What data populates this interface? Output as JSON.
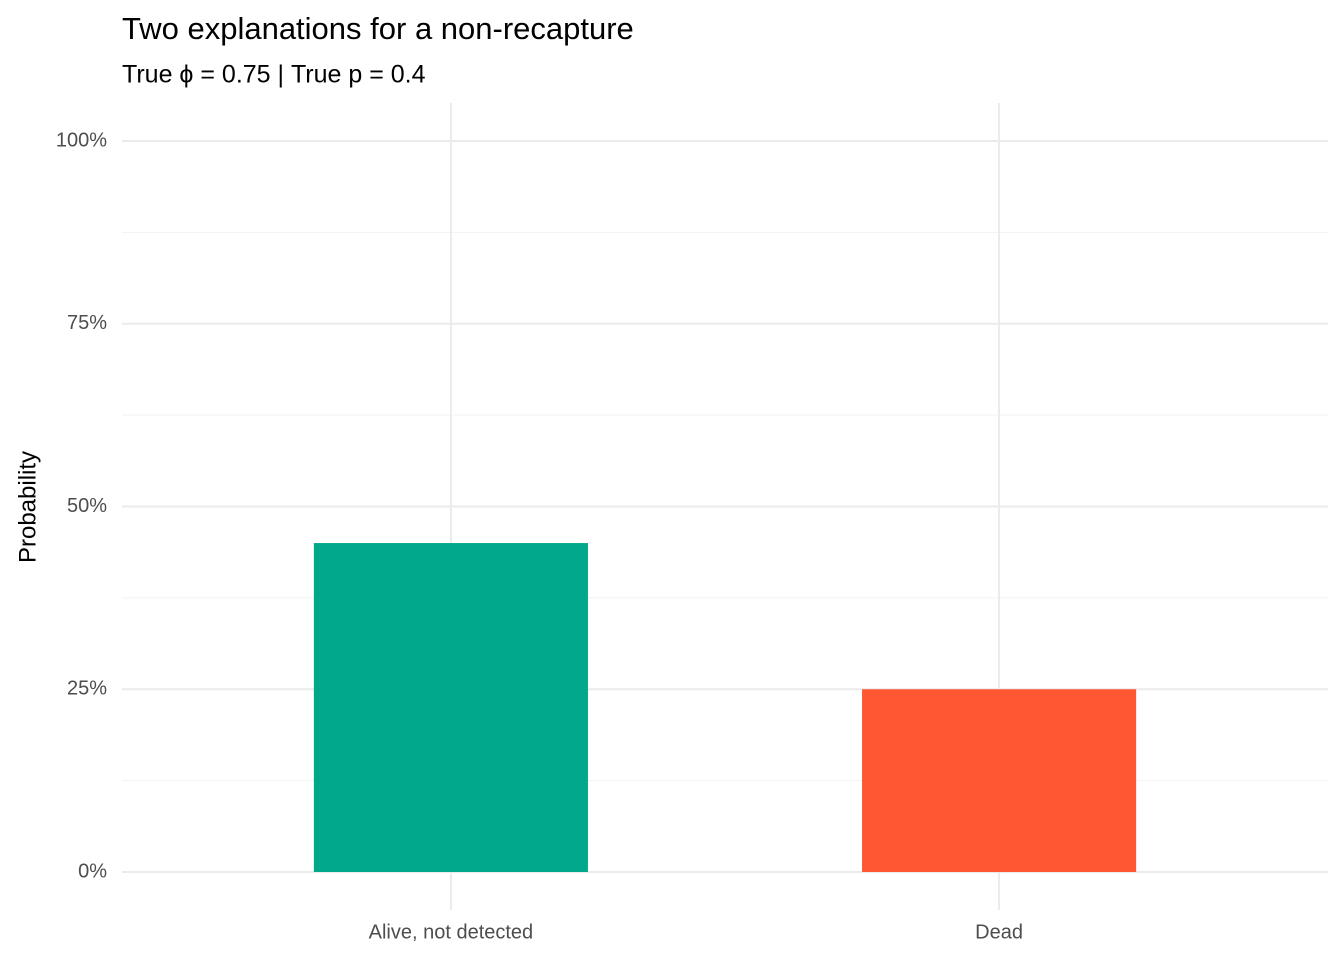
{
  "chart_data": {
    "type": "bar",
    "title": "Two explanations for a non-recapture",
    "subtitle": "True ϕ = 0.75  |  True p = 0.4",
    "y_label": "Probability",
    "categories": [
      "Alive, not detected",
      "Dead"
    ],
    "values": [
      45,
      25
    ],
    "colors": [
      "#02a88a",
      "#ff5733"
    ],
    "ylim": [
      -5.2,
      105.2
    ],
    "yticks": [
      {
        "value": 0,
        "label": "0%"
      },
      {
        "value": 25,
        "label": "25%"
      },
      {
        "value": 50,
        "label": "50%"
      },
      {
        "value": 75,
        "label": "75%"
      },
      {
        "value": 100,
        "label": "100%"
      }
    ],
    "minor_yticks": [
      12.5,
      37.5,
      62.5,
      87.5
    ],
    "grid": true
  }
}
